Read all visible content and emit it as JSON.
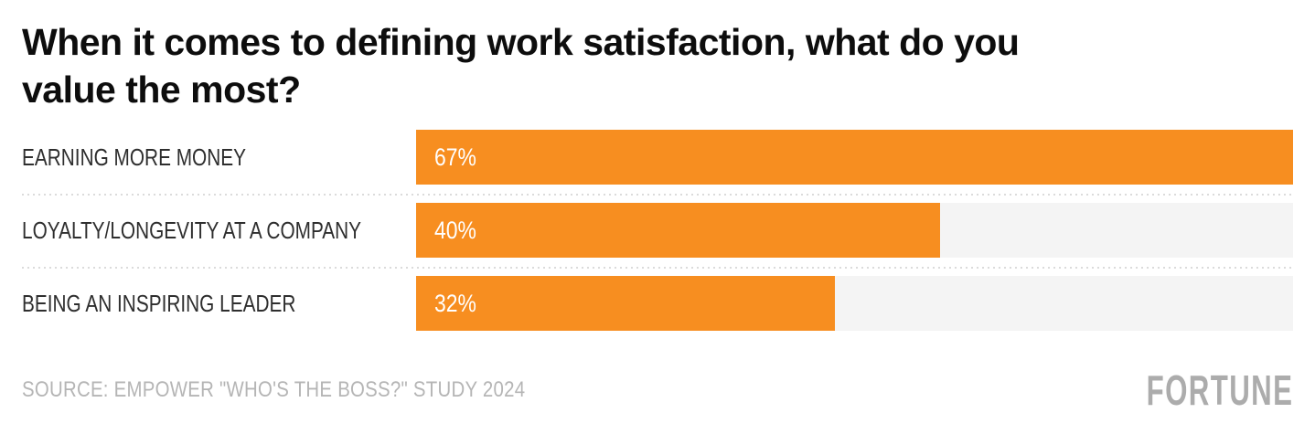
{
  "page": {
    "title": "When it comes to defining work satisfaction, what do you value the most?",
    "title_lines": [
      "When it comes to defining work satisfaction, what do you",
      "value the most?"
    ],
    "source": "SOURCE: EMPOWER \"WHO'S THE BOSS?\" STUDY 2024",
    "brand": "FORTUNE"
  },
  "colors": {
    "bar": "#F78E20",
    "track": "#F4F4F4",
    "title_text": "#0D0D0D",
    "label_text": "#2E2E2E",
    "value_text": "#FFFFFF",
    "muted_text": "#B5B5B5",
    "brand_text": "#ACACAC",
    "separator": "#DBDBDB"
  },
  "chart_data": {
    "type": "bar",
    "orientation": "horizontal",
    "title": "When it comes to defining work satisfaction, what do you value the most?",
    "categories": [
      "EARNING MORE MONEY",
      "LOYALTY/LONGEVITY AT A COMPANY",
      "BEING AN INSPIRING LEADER"
    ],
    "values": [
      67,
      40,
      32
    ],
    "value_labels": [
      "67%",
      "40%",
      "32%"
    ],
    "unit": "%",
    "xlim": [
      0,
      67
    ],
    "value_label_position": "inside-start",
    "grid": false,
    "legend": false,
    "xlabel": "",
    "ylabel": ""
  }
}
